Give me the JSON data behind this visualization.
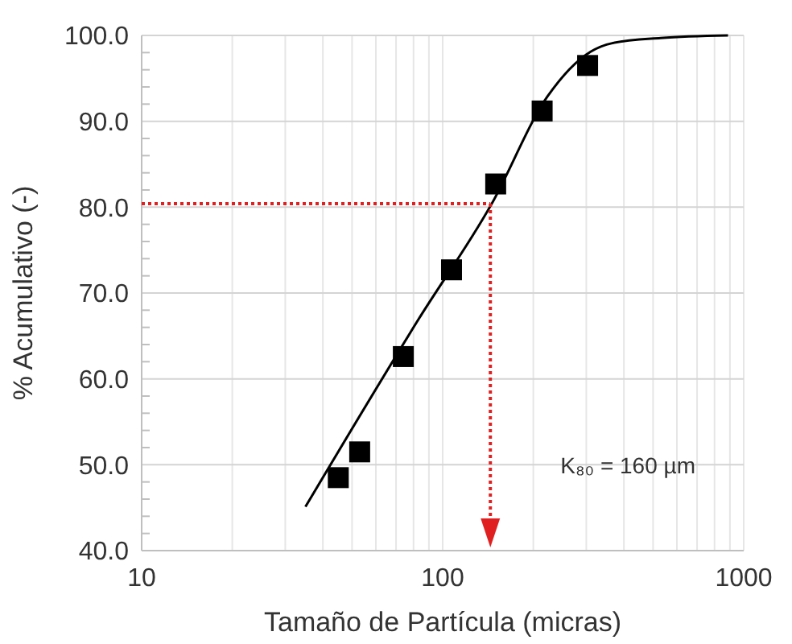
{
  "chart_data": {
    "type": "scatter",
    "xlabel": "Tamaño de Partícula (micras)",
    "ylabel": "% Acumulativo (-)",
    "log": "x",
    "grid": true,
    "marker": "square",
    "xlim": [
      10,
      1000
    ],
    "xticks": [
      10,
      100,
      1000
    ],
    "ylim": [
      40,
      100
    ],
    "yticks": [
      {
        "value": 40,
        "label": "40.0"
      },
      {
        "value": 50,
        "label": "50.0"
      },
      {
        "value": 60,
        "label": "60.0"
      },
      {
        "value": 70,
        "label": "70.0"
      },
      {
        "value": 80,
        "label": "80.0"
      },
      {
        "value": 90,
        "label": "90.0"
      },
      {
        "value": 100,
        "label": "100.0"
      }
    ],
    "series": [
      {
        "color": "#000000",
        "x": [
          45,
          53,
          74,
          107,
          150,
          214,
          303
        ],
        "values": [
          48.5,
          51.5,
          62.6,
          72.7,
          82.7,
          91.2,
          96.5
        ]
      },
      {
        "type": "line",
        "color": "#000000",
        "marker": "none",
        "x": [
          35,
          83,
          145,
          223,
          310,
          366,
          530,
          887
        ],
        "values": [
          45.1,
          66.9,
          80.3,
          92.9,
          98.1,
          99.1,
          99.7,
          100
        ]
      }
    ],
    "ref_lines": [
      {
        "axis": "y",
        "value": 80.4,
        "color": "#e02020",
        "line_style": "dotted"
      },
      {
        "axis": "x",
        "value": 144,
        "color": "#e02020",
        "line_style": "dotted"
      }
    ],
    "annotations": [
      "K₈₀ = 160 µm"
    ]
  }
}
